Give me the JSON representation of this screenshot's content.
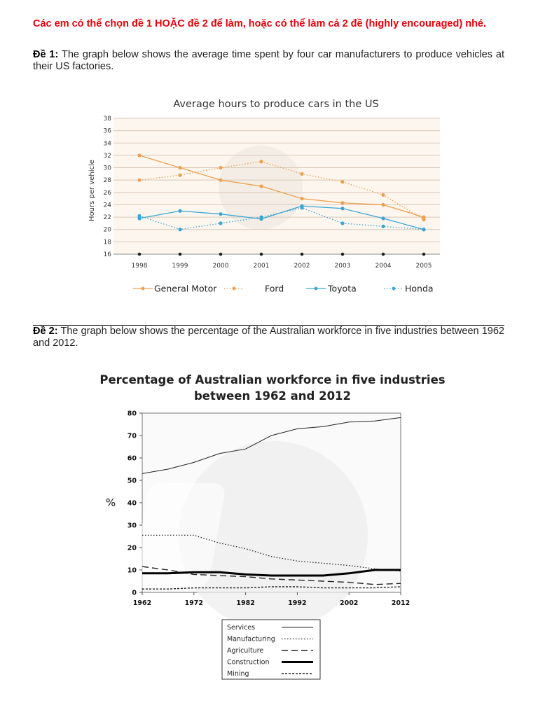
{
  "intro_text": "Các em có thể chọn đề 1 HOẶC đề 2 để làm, hoặc có thể làm cả 2 đề (highly encouraged) nhé.",
  "task1": {
    "label": "Đề 1:",
    "text": " The graph below shows the average time spent by four car manufacturers to produce vehicles at their US factories."
  },
  "task2": {
    "label": "Đề 2:",
    "text": " The graph below shows the percentage of the Australian workforce in five industries between 1962 and 2012."
  },
  "chart_data": [
    {
      "type": "line",
      "title": "Average hours to produce cars in the US",
      "xlabel": "",
      "ylabel": "Hours per vehicle",
      "x": [
        "1998",
        "1999",
        "2000",
        "2001",
        "2002",
        "2003",
        "2004",
        "2005"
      ],
      "ylim": [
        16,
        38
      ],
      "yticks": [
        16,
        18,
        20,
        22,
        24,
        26,
        28,
        30,
        32,
        34,
        36,
        38
      ],
      "grid": true,
      "legend": "bottom",
      "series": [
        {
          "name": "General Motor",
          "color": "#f0a04b",
          "style": "solid",
          "values": [
            32,
            30,
            28,
            27,
            25,
            24.3,
            24,
            22
          ]
        },
        {
          "name": "Ford",
          "color": "#f0a04b",
          "style": "dotted",
          "values": [
            28,
            28.8,
            30,
            31,
            29,
            27.7,
            25.6,
            21.6
          ]
        },
        {
          "name": "Toyota",
          "color": "#3aa6d8",
          "style": "solid",
          "values": [
            21.8,
            23,
            22.5,
            21.7,
            23.8,
            23.4,
            21.8,
            20
          ]
        },
        {
          "name": "Honda",
          "color": "#3aa6d8",
          "style": "dotted",
          "values": [
            22.2,
            20,
            21,
            22,
            23.5,
            21,
            20.5,
            20
          ]
        }
      ]
    },
    {
      "type": "line",
      "title": "Percentage of Australian workforce in five industries",
      "subtitle": "between 1962 and 2012",
      "xlabel": "",
      "ylabel": "%",
      "x": [
        1962,
        1967,
        1972,
        1977,
        1982,
        1987,
        1992,
        1997,
        2002,
        2007,
        2012
      ],
      "xticks": [
        "1962",
        "1972",
        "1982",
        "1992",
        "2002",
        "2012"
      ],
      "ylim": [
        0,
        80
      ],
      "yticks": [
        0,
        10,
        20,
        30,
        40,
        50,
        60,
        70,
        80
      ],
      "grid": false,
      "legend": "bottom",
      "series": [
        {
          "name": "Services",
          "color": "#222222",
          "style": "thin",
          "values": [
            53,
            55,
            58,
            62,
            64,
            70,
            73,
            74,
            76,
            76.5,
            78
          ]
        },
        {
          "name": "Manufacturing",
          "color": "#222222",
          "style": "dotted",
          "values": [
            25.5,
            25.5,
            25.5,
            22,
            19.5,
            16,
            14,
            13,
            12,
            10.5,
            9.5
          ]
        },
        {
          "name": "Agriculture",
          "color": "#222222",
          "style": "dashed",
          "values": [
            11.5,
            10,
            8,
            7.5,
            7,
            6,
            5.5,
            5,
            4.5,
            3.5,
            4
          ]
        },
        {
          "name": "Construction",
          "color": "#000000",
          "style": "thick",
          "values": [
            8.5,
            8.5,
            9,
            9,
            8,
            7.5,
            7.5,
            7.5,
            8.5,
            10,
            10
          ]
        },
        {
          "name": "Mining",
          "color": "#222222",
          "style": "dashed-fine",
          "values": [
            1.5,
            1.5,
            2,
            2,
            2,
            2.5,
            2.5,
            2,
            2,
            2,
            2.5
          ]
        }
      ]
    }
  ]
}
